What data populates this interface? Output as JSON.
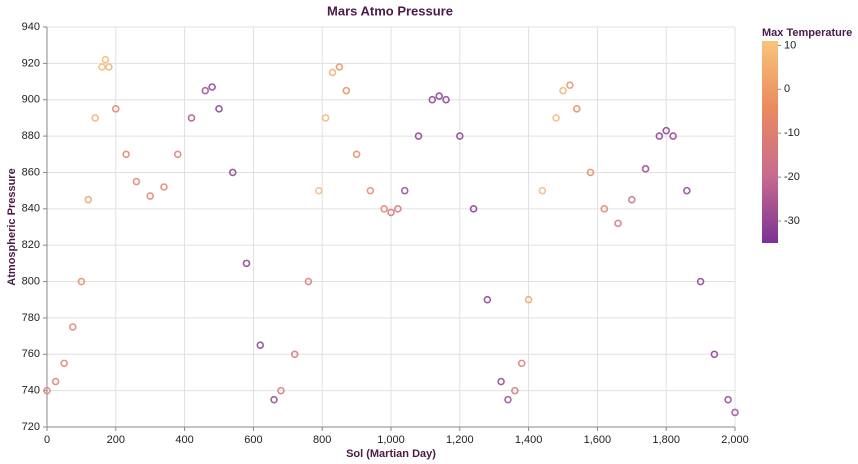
{
  "chart_data": {
    "type": "scatter",
    "title": "Mars Atmo Pressure",
    "x_label": "Sol (Martian Day)",
    "y_label": "Atmospheric Pressure",
    "legend_title": "Max Temperature",
    "x": [
      0,
      25,
      50,
      75,
      100,
      120,
      140,
      160,
      170,
      180,
      200,
      230,
      260,
      300,
      340,
      380,
      420,
      460,
      480,
      500,
      540,
      580,
      620,
      660,
      680,
      720,
      760,
      790,
      810,
      830,
      850,
      870,
      900,
      940,
      980,
      1000,
      1020,
      1040,
      1080,
      1120,
      1140,
      1160,
      1200,
      1240,
      1280,
      1320,
      1340,
      1360,
      1380,
      1400,
      1440,
      1480,
      1500,
      1520,
      1540,
      1580,
      1620,
      1660,
      1700,
      1740,
      1780,
      1800,
      1820,
      1860,
      1900,
      1940,
      1980,
      2000
    ],
    "values": [
      740,
      745,
      755,
      775,
      800,
      845,
      890,
      918,
      922,
      918,
      895,
      870,
      855,
      847,
      852,
      870,
      890,
      905,
      907,
      895,
      860,
      810,
      765,
      735,
      740,
      760,
      800,
      850,
      890,
      915,
      918,
      905,
      870,
      850,
      840,
      838,
      840,
      850,
      880,
      900,
      902,
      900,
      880,
      840,
      790,
      745,
      735,
      740,
      755,
      790,
      850,
      890,
      905,
      908,
      895,
      860,
      840,
      832,
      845,
      862,
      880,
      883,
      880,
      850,
      800,
      760,
      735,
      728
    ],
    "temperature": [
      -10,
      -10,
      -9,
      -8,
      -5,
      2,
      6,
      8,
      8,
      6,
      -8,
      -8,
      -9,
      -8,
      -8,
      -12,
      -25,
      -28,
      -32,
      -32,
      -32,
      -33,
      -32,
      -30,
      -15,
      -15,
      -12,
      8,
      8,
      5,
      -3,
      -5,
      -5,
      -6,
      -8,
      -15,
      -15,
      -30,
      -32,
      -32,
      -33,
      -32,
      -32,
      -33,
      -32,
      -30,
      -28,
      -15,
      -12,
      2,
      8,
      8,
      6,
      -2,
      -5,
      -6,
      -8,
      -15,
      -20,
      -30,
      -32,
      -33,
      -32,
      -32,
      -32,
      -32,
      -30,
      -28
    ],
    "xlim": [
      0,
      2000
    ],
    "xticks": [
      0,
      200,
      400,
      600,
      800,
      {
        "value": 1000,
        "label": "1,000"
      },
      {
        "value": 1200,
        "label": "1,200"
      },
      {
        "value": 1400,
        "label": "1,400"
      },
      {
        "value": 1600,
        "label": "1,600"
      },
      {
        "value": 1800,
        "label": "1,800"
      },
      {
        "value": 2000,
        "label": "2,000"
      }
    ],
    "ylim": [
      720,
      940
    ],
    "yticks": [
      720,
      740,
      760,
      780,
      800,
      820,
      840,
      860,
      880,
      900,
      920,
      940
    ],
    "color_lim": [
      -35,
      11
    ],
    "color_ticks": [
      10,
      0,
      -10,
      -20,
      -30
    ],
    "color_range": [
      "#7b3294",
      "#c86b8f",
      "#ea8a5f",
      "#f8c47a"
    ],
    "grid": true
  }
}
